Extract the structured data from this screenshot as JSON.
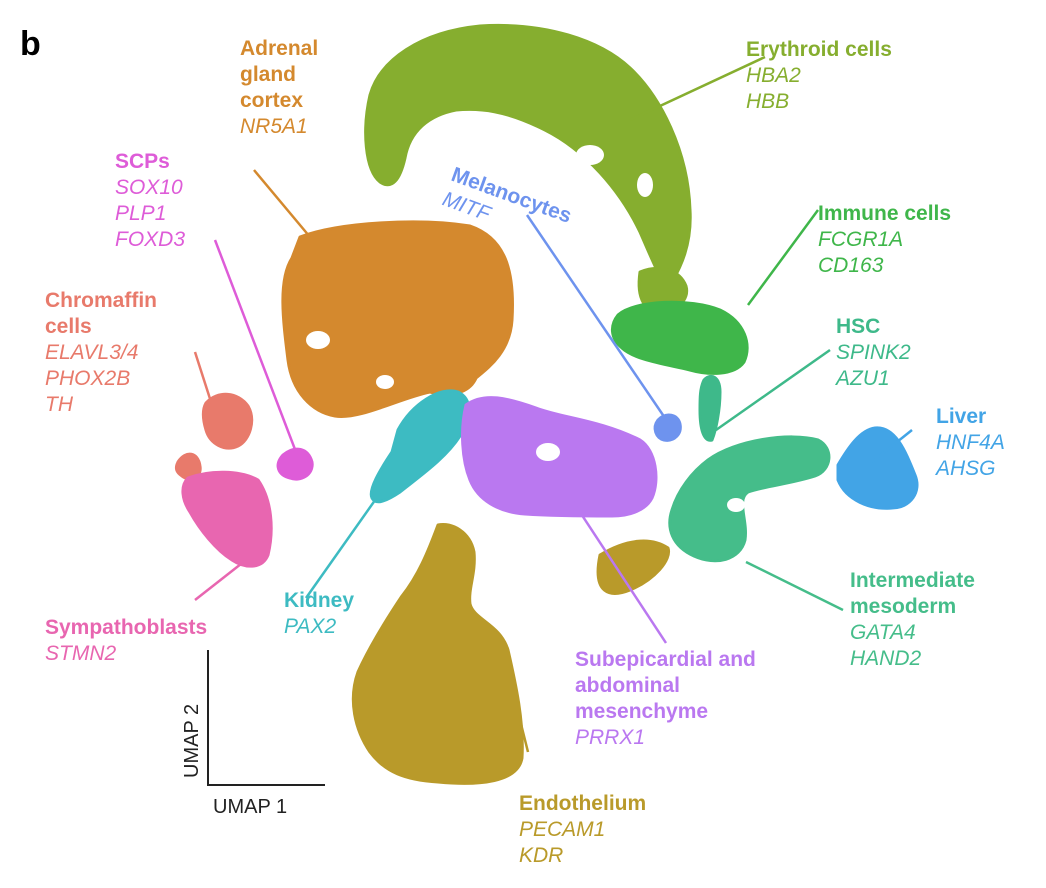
{
  "panel_letter": "b",
  "chart_data": {
    "type": "scatter",
    "xlabel": "UMAP 1",
    "ylabel": "UMAP 2",
    "clusters": [
      {
        "key": "adrenal",
        "name_lines": [
          "Adrenal",
          "gland",
          "cortex"
        ],
        "genes": [
          "NR5A1"
        ],
        "color": "#D4892E"
      },
      {
        "key": "erythroid",
        "name_lines": [
          "Erythroid cells"
        ],
        "genes": [
          "HBA2",
          "HBB"
        ],
        "color": "#86AE2F"
      },
      {
        "key": "scps",
        "name_lines": [
          "SCPs"
        ],
        "genes": [
          "SOX10",
          "PLP1",
          "FOXD3"
        ],
        "color": "#DE5CD8"
      },
      {
        "key": "melanocytes",
        "name_lines": [
          "Melanocytes"
        ],
        "genes": [
          "MITF"
        ],
        "color": "#6E93EE"
      },
      {
        "key": "immune",
        "name_lines": [
          "Immune cells"
        ],
        "genes": [
          "FCGR1A",
          "CD163"
        ],
        "color": "#3FB64A"
      },
      {
        "key": "chromaffin",
        "name_lines": [
          "Chromaffin",
          "cells"
        ],
        "genes": [
          "ELAVL3/4",
          "PHOX2B",
          "TH"
        ],
        "color": "#E87A6B"
      },
      {
        "key": "hsc",
        "name_lines": [
          "HSC"
        ],
        "genes": [
          "SPINK2",
          "AZU1"
        ],
        "color": "#3EB98A"
      },
      {
        "key": "liver",
        "name_lines": [
          "Liver"
        ],
        "genes": [
          "HNF4A",
          "AHSG"
        ],
        "color": "#42A4E6"
      },
      {
        "key": "kidney",
        "name_lines": [
          "Kidney"
        ],
        "genes": [
          "PAX2"
        ],
        "color": "#3DBBC2"
      },
      {
        "key": "sympathoblasts",
        "name_lines": [
          "Sympathoblasts"
        ],
        "genes": [
          "STMN2"
        ],
        "color": "#E866B0"
      },
      {
        "key": "intermediate",
        "name_lines": [
          "Intermediate",
          "mesoderm"
        ],
        "genes": [
          "GATA4",
          "HAND2"
        ],
        "color": "#45BD8A"
      },
      {
        "key": "subepicardial",
        "name_lines": [
          "Subepicardial and",
          "abdominal",
          "mesenchyme"
        ],
        "genes": [
          "PRRX1"
        ],
        "color": "#BA78F0"
      },
      {
        "key": "endothelium",
        "name_lines": [
          "Endothelium"
        ],
        "genes": [
          "PECAM1",
          "KDR"
        ],
        "color": "#B99A2A"
      }
    ]
  }
}
